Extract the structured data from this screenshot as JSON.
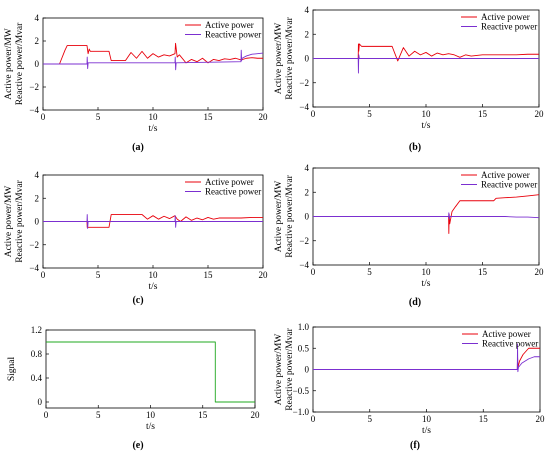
{
  "colors": {
    "active": "#e8000b",
    "reactive": "#7b2fd0",
    "signal": "#1fa81f",
    "axis": "#000000"
  },
  "chart_data": [
    {
      "id": "a",
      "type": "line",
      "panel_label": "(a)",
      "xlabel": "t/s",
      "ylabel_lines": [
        "Active power/MW",
        "Reactive power/Mvar"
      ],
      "xlim": [
        0,
        20
      ],
      "ylim": [
        -4,
        4
      ],
      "xticks": [
        0,
        5,
        10,
        15,
        20
      ],
      "yticks": [
        -4,
        -2,
        0,
        2,
        4
      ],
      "tick_labels_x": [
        "0",
        "5",
        "10",
        "15",
        "20"
      ],
      "tick_labels_y": [
        "−4",
        "−2",
        "0",
        "2",
        "4"
      ],
      "legend": {
        "position": "top-right",
        "entries": [
          "Active power",
          "Reactive power"
        ]
      },
      "series": [
        {
          "name": "Active power",
          "color_key": "active",
          "x": [
            0,
            1.5,
            2,
            2.2,
            4,
            4.1,
            4.2,
            4.3,
            6,
            6.2,
            7.5,
            8,
            8.5,
            9,
            9.5,
            10,
            10.5,
            11,
            11.5,
            12,
            12.05,
            12.2,
            12.4,
            13,
            13.5,
            14,
            14.5,
            15,
            15.5,
            16,
            16.5,
            17,
            17.5,
            18,
            18.5,
            19,
            19.5,
            20
          ],
          "y": [
            0,
            0,
            1.2,
            1.6,
            1.6,
            0.9,
            1.3,
            1.1,
            1.1,
            0.3,
            0.3,
            1.0,
            0.5,
            1.1,
            0.5,
            0.9,
            0.6,
            0.8,
            0.7,
            0.9,
            1.8,
            0.6,
            0.8,
            0.1,
            0.4,
            0.2,
            0.5,
            0.1,
            0.4,
            0.3,
            0.45,
            0.4,
            0.5,
            0.35,
            0.5,
            0.55,
            0.5,
            0.5
          ]
        },
        {
          "name": "Reactive power",
          "color_key": "reactive",
          "x": [
            0,
            4,
            4.02,
            4.06,
            4.1,
            12,
            12.02,
            12.06,
            12.1,
            18,
            18.02,
            18.06,
            18.1,
            18.5,
            19,
            20
          ],
          "y": [
            0,
            0,
            0.6,
            -0.4,
            0.1,
            0.1,
            0.6,
            -0.5,
            0.1,
            0.2,
            1.2,
            0.3,
            0.5,
            0.7,
            0.85,
            0.95
          ]
        }
      ]
    },
    {
      "id": "b",
      "type": "line",
      "panel_label": "(b)",
      "xlabel": "t/s",
      "ylabel_lines": [
        "Active power/MW",
        "Reactive power/Mvar"
      ],
      "xlim": [
        0,
        20
      ],
      "ylim": [
        -4,
        4
      ],
      "xticks": [
        0,
        5,
        10,
        15,
        20
      ],
      "yticks": [
        -4,
        -2,
        0,
        2,
        4
      ],
      "tick_labels_x": [
        "0",
        "5",
        "10",
        "15",
        "20"
      ],
      "tick_labels_y": [
        "−4",
        "−2",
        "0",
        "2",
        "4"
      ],
      "legend": {
        "position": "top-right",
        "entries": [
          "Active power",
          "Reactive power"
        ]
      },
      "series": [
        {
          "name": "Active power",
          "color_key": "active",
          "x": [
            0,
            4,
            4.02,
            4.05,
            4.1,
            4.3,
            7,
            7.5,
            8,
            8.5,
            9,
            9.5,
            10,
            10.5,
            11,
            11.5,
            12,
            12.5,
            13,
            13.5,
            14,
            15,
            16,
            17,
            18,
            19,
            20
          ],
          "y": [
            0,
            0,
            1.2,
            0.6,
            1.2,
            1.0,
            1.0,
            -0.2,
            0.9,
            0.2,
            0.6,
            0.3,
            0.5,
            0.2,
            0.45,
            0.3,
            0.4,
            0.3,
            0.1,
            0.3,
            0.2,
            0.3,
            0.3,
            0.3,
            0.3,
            0.35,
            0.35
          ]
        },
        {
          "name": "Reactive power",
          "color_key": "reactive",
          "x": [
            0,
            4,
            4.02,
            4.05,
            4.1,
            20
          ],
          "y": [
            0,
            0,
            -1.2,
            0.3,
            0,
            0
          ]
        }
      ]
    },
    {
      "id": "c",
      "type": "line",
      "panel_label": "(c)",
      "xlabel": "t/s",
      "ylabel_lines": [
        "Active power/MW",
        "Reactive power/Mvar"
      ],
      "xlim": [
        0,
        20
      ],
      "ylim": [
        -4,
        4
      ],
      "xticks": [
        0,
        5,
        10,
        15,
        20
      ],
      "yticks": [
        -4,
        -2,
        0,
        2,
        4
      ],
      "tick_labels_x": [
        "0",
        "5",
        "10",
        "15",
        "20"
      ],
      "tick_labels_y": [
        "−4",
        "−2",
        "0",
        "2",
        "4"
      ],
      "legend": {
        "position": "top-right",
        "entries": [
          "Active power",
          "Reactive power"
        ]
      },
      "series": [
        {
          "name": "Active power",
          "color_key": "active",
          "x": [
            0,
            4,
            4.02,
            4.1,
            6,
            6.2,
            9,
            9.5,
            10,
            10.5,
            11,
            11.5,
            12,
            12.2,
            12.5,
            13,
            13.5,
            14,
            14.5,
            15,
            15.5,
            16,
            17,
            18,
            19,
            20
          ],
          "y": [
            0,
            0,
            -0.5,
            -0.5,
            -0.5,
            0.6,
            0.6,
            0.2,
            0.5,
            0.2,
            0.45,
            0.25,
            0.5,
            0.2,
            0.0,
            0.4,
            0.1,
            0.3,
            0.15,
            0.35,
            0.2,
            0.3,
            0.3,
            0.3,
            0.35,
            0.35
          ]
        },
        {
          "name": "Reactive power",
          "color_key": "reactive",
          "x": [
            0,
            4,
            4.02,
            4.06,
            4.1,
            12,
            12.02,
            12.06,
            12.1,
            20
          ],
          "y": [
            0,
            0,
            0.6,
            -0.6,
            0,
            0,
            0.5,
            -0.5,
            0,
            0
          ]
        }
      ]
    },
    {
      "id": "d",
      "type": "line",
      "panel_label": "(d)",
      "xlabel": "t/s",
      "ylabel_lines": [
        "Active power/MW",
        "Reactive power/Mvar"
      ],
      "xlim": [
        0,
        20
      ],
      "ylim": [
        -4,
        4
      ],
      "xticks": [
        0,
        5,
        10,
        15,
        20
      ],
      "yticks": [
        -4,
        -2,
        0,
        2,
        4
      ],
      "tick_labels_x": [
        "0",
        "5",
        "10",
        "15",
        "20"
      ],
      "tick_labels_y": [
        "−4",
        "−2",
        "0",
        "2",
        "4"
      ],
      "legend": {
        "position": "top-right",
        "entries": [
          "Active power",
          "Reactive power"
        ]
      },
      "series": [
        {
          "name": "Active power",
          "color_key": "active",
          "x": [
            0,
            12,
            12.02,
            12.05,
            12.1,
            12.3,
            12.6,
            13,
            14,
            15,
            16,
            16.2,
            17,
            18,
            19,
            20
          ],
          "y": [
            0,
            0,
            -1.4,
            0.2,
            -0.6,
            0.4,
            0.8,
            1.3,
            1.3,
            1.3,
            1.3,
            1.5,
            1.55,
            1.6,
            1.7,
            1.8
          ]
        },
        {
          "name": "Reactive power",
          "color_key": "reactive",
          "x": [
            0,
            12,
            12.02,
            12.06,
            12.1,
            16,
            17,
            18,
            19,
            20
          ],
          "y": [
            0,
            0,
            0.3,
            -0.2,
            0,
            0,
            0,
            -0.05,
            -0.05,
            -0.1
          ]
        }
      ]
    },
    {
      "id": "e",
      "type": "line",
      "panel_label": "(e)",
      "xlabel": "t/s",
      "ylabel_lines": [
        "Signal"
      ],
      "xlim": [
        0,
        20
      ],
      "ylim": [
        -0.1,
        1.2
      ],
      "xticks": [
        0,
        5,
        10,
        15,
        20
      ],
      "yticks": [
        0,
        0.4,
        0.8,
        1.2
      ],
      "tick_labels_x": [
        "0",
        "5",
        "10",
        "15",
        "20"
      ],
      "tick_labels_y": [
        "0",
        "0.4",
        "0.8",
        "1.2"
      ],
      "legend": null,
      "series": [
        {
          "name": "",
          "color_key": "signal",
          "x": [
            0,
            16.2,
            16.2,
            20
          ],
          "y": [
            1,
            1,
            0,
            0
          ]
        }
      ]
    },
    {
      "id": "f",
      "type": "line",
      "panel_label": "(f)",
      "xlabel": "t/s",
      "ylabel_lines": [
        "Active power/MW",
        "Reactive power/Mvar"
      ],
      "xlim": [
        0,
        20
      ],
      "ylim": [
        -1.0,
        1.0
      ],
      "xticks": [
        0,
        5,
        10,
        15,
        20
      ],
      "yticks": [
        -1.0,
        -0.5,
        0,
        0.5,
        1.0
      ],
      "tick_labels_x": [
        "0",
        "5",
        "10",
        "15",
        "20"
      ],
      "tick_labels_y": [
        "−1.0",
        "−0.5",
        "0",
        "0.5",
        "1.0"
      ],
      "legend": {
        "position": "top-right",
        "entries": [
          "Active power",
          "Reactive power"
        ]
      },
      "series": [
        {
          "name": "Active power",
          "color_key": "active",
          "x": [
            0,
            18,
            18.02,
            18.06,
            18.2,
            18.5,
            19,
            19.5,
            20
          ],
          "y": [
            0,
            0,
            0.3,
            0.05,
            0.2,
            0.35,
            0.5,
            0.5,
            0.5
          ]
        },
        {
          "name": "Reactive power",
          "color_key": "reactive",
          "x": [
            0,
            18,
            18.02,
            18.05,
            18.1,
            18.4,
            19,
            19.5,
            20
          ],
          "y": [
            0,
            0,
            0.6,
            -0.05,
            0.05,
            0.15,
            0.25,
            0.3,
            0.3
          ]
        }
      ]
    }
  ]
}
